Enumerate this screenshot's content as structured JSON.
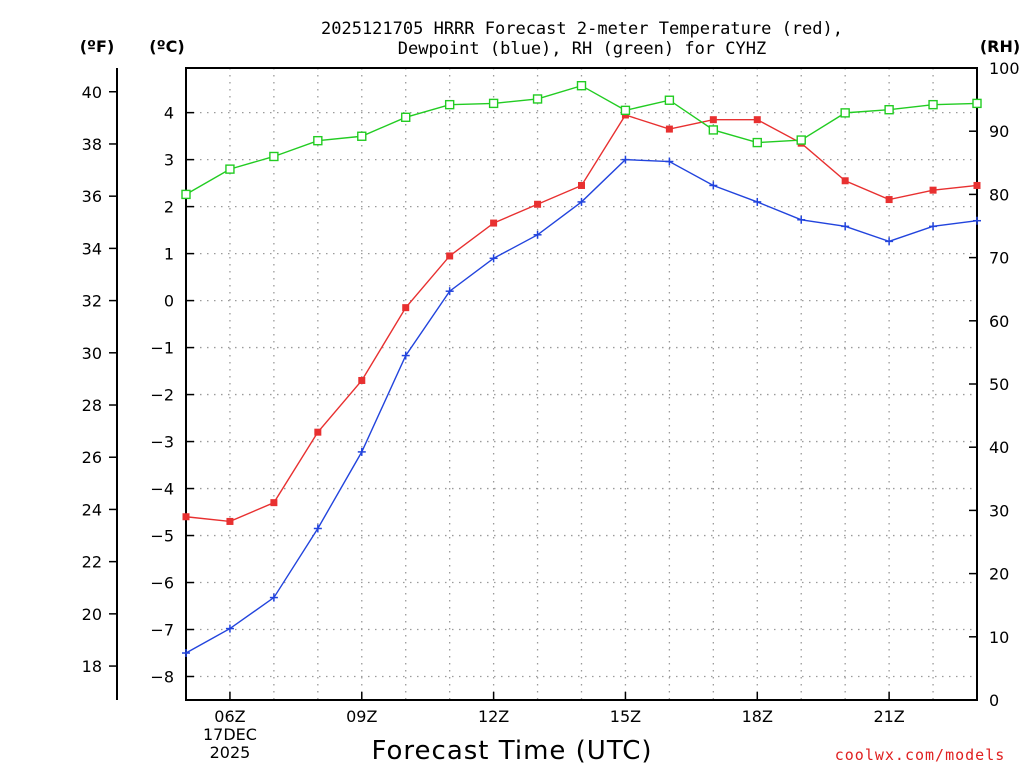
{
  "chart_data": {
    "type": "line",
    "title": [
      "2025121705 HRRR Forecast 2-meter Temperature (red),",
      "Dewpoint (blue), RH (green) for CYHZ"
    ],
    "xlabel": "Forecast Time (UTC)",
    "credit": "coolwx.com/models",
    "units": {
      "fahrenheit": "(ºF)",
      "celsius": "(ºC)",
      "rh": "(RH)"
    },
    "x": [
      5,
      6,
      7,
      8,
      9,
      10,
      11,
      12,
      13,
      14,
      15,
      16,
      17,
      18,
      19,
      20,
      21,
      22,
      23
    ],
    "xlim": [
      5,
      23
    ],
    "x_ticks": [
      {
        "x": 6,
        "lines": [
          "06Z",
          "17DEC",
          "2025"
        ]
      },
      {
        "x": 9,
        "lines": [
          "09Z"
        ]
      },
      {
        "x": 12,
        "lines": [
          "12Z"
        ]
      },
      {
        "x": 15,
        "lines": [
          "15Z"
        ]
      },
      {
        "x": 18,
        "lines": [
          "18Z"
        ]
      },
      {
        "x": 21,
        "lines": [
          "21Z"
        ]
      }
    ],
    "celsius_axis": {
      "min": -8.5,
      "max": 4.95,
      "ticks": [
        -8,
        -7,
        -6,
        -5,
        -4,
        -3,
        -2,
        -1,
        0,
        1,
        2,
        3,
        4
      ]
    },
    "fahrenheit_axis": {
      "ticks": [
        18,
        20,
        22,
        24,
        26,
        28,
        30,
        32,
        34,
        36,
        38,
        40
      ]
    },
    "rh_axis": {
      "min": 0,
      "max": 100,
      "ticks": [
        0,
        10,
        20,
        30,
        40,
        50,
        60,
        70,
        80,
        90,
        100
      ]
    },
    "series": [
      {
        "name": "2-meter Temperature",
        "axis": "celsius",
        "color": "#e83030",
        "marker": "filled-square",
        "values": [
          -4.6,
          -4.7,
          -4.3,
          -2.8,
          -1.7,
          -0.15,
          0.95,
          1.65,
          2.05,
          2.45,
          3.95,
          3.65,
          3.85,
          3.85,
          3.35,
          2.55,
          2.15,
          2.35,
          2.45
        ]
      },
      {
        "name": "Dewpoint",
        "axis": "celsius",
        "color": "#2244dd",
        "marker": "plus",
        "values": [
          -7.5,
          -6.98,
          -6.32,
          -4.85,
          -3.22,
          -1.17,
          0.2,
          0.9,
          1.4,
          2.1,
          3.0,
          2.96,
          2.45,
          2.1,
          1.72,
          1.58,
          1.26,
          1.58,
          1.7
        ]
      },
      {
        "name": "RH",
        "axis": "rh",
        "color": "#22cc22",
        "marker": "open-square",
        "values": [
          80,
          84,
          86,
          88.5,
          89.2,
          92.2,
          94.2,
          94.4,
          95.1,
          97.2,
          93.3,
          94.9,
          90.2,
          88.2,
          88.6,
          92.9,
          93.4,
          94.2,
          94.4
        ]
      }
    ]
  }
}
